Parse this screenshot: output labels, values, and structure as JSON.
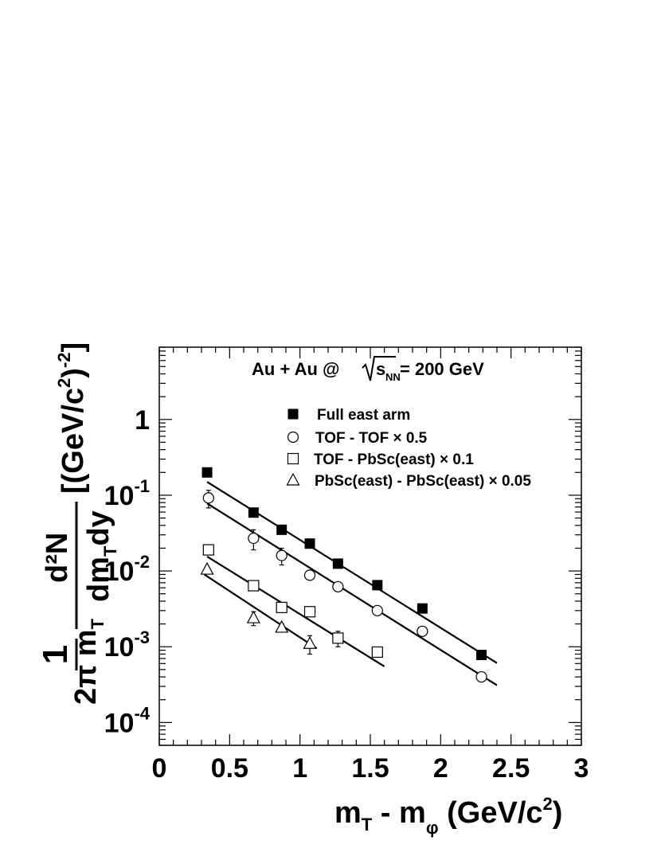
{
  "chart_data": {
    "type": "scatter",
    "title": "",
    "annotation": {
      "prefix": "Au + Au @",
      "sqrt_arg": "s",
      "sqrt_sub": "NN",
      "suffix": "= 200 GeV"
    },
    "xlabel": {
      "main": "m",
      "sub1": "T",
      "mid": " - m",
      "sub2": "φ",
      "unit": "(GeV/c",
      "sup": "2",
      "close": ")"
    },
    "ylabel": {
      "prefix": "1",
      "denominator_left": "2π m",
      "denominator_sub": "T",
      "numerator": "d²N",
      "denominator_right": "dm",
      "denominator_right_sub": "T",
      "denominator_tail": "dy",
      "unit": "[(GeV/c",
      "unit_sup_inner": "2",
      "unit_close": ")",
      "unit_sup_outer": "-2",
      "unit_bracket": "]"
    },
    "x_range": [
      0,
      3
    ],
    "y_range": [
      5e-05,
      9
    ],
    "y_scale": "log",
    "x_ticks": [
      {
        "v": 0,
        "label": "0"
      },
      {
        "v": 0.5,
        "label": "0.5"
      },
      {
        "v": 1,
        "label": "1"
      },
      {
        "v": 1.5,
        "label": "1.5"
      },
      {
        "v": 2,
        "label": "2"
      },
      {
        "v": 2.5,
        "label": "2.5"
      },
      {
        "v": 3,
        "label": "3"
      }
    ],
    "y_ticks": [
      {
        "v": 1,
        "base": "1",
        "exp": ""
      },
      {
        "v": 0.1,
        "base": "10",
        "exp": "-1"
      },
      {
        "v": 0.01,
        "base": "10",
        "exp": "-2"
      },
      {
        "v": 0.001,
        "base": "10",
        "exp": "-3"
      },
      {
        "v": 0.0001,
        "base": "10",
        "exp": "-4"
      }
    ],
    "series": [
      {
        "name": "Full east arm",
        "marker": "filled-square",
        "x": [
          0.34,
          0.67,
          0.87,
          1.07,
          1.27,
          1.55,
          1.87,
          2.29
        ],
        "y": [
          0.2,
          0.059,
          0.035,
          0.023,
          0.0125,
          0.0065,
          0.0032,
          0.00078
        ],
        "err": [
          0,
          0.004,
          0.003,
          0.002,
          0.001,
          0.0006,
          0.0003,
          6e-05
        ],
        "fit": {
          "x": [
            0.34,
            2.4
          ],
          "y": [
            0.15,
            0.00061
          ]
        }
      },
      {
        "name": "TOF - TOF × 0.5",
        "marker": "open-circle",
        "x": [
          0.35,
          0.67,
          0.87,
          1.07,
          1.27,
          1.55,
          1.87,
          2.29
        ],
        "y": [
          0.092,
          0.027,
          0.016,
          0.0088,
          0.0062,
          0.003,
          0.0016,
          0.0004
        ],
        "err": [
          0.024,
          0.008,
          0.004,
          0.001,
          0.0008,
          0.0003,
          0.0002,
          3e-05
        ],
        "fit": {
          "x": [
            0.34,
            2.4
          ],
          "y": [
            0.078,
            0.00031
          ]
        }
      },
      {
        "name": "TOF - PbSc(east) × 0.1",
        "marker": "open-square",
        "x": [
          0.35,
          0.67,
          0.87,
          1.07,
          1.27,
          1.55
        ],
        "y": [
          0.019,
          0.0064,
          0.0033,
          0.0029,
          0.0013,
          0.00085
        ],
        "err": [
          0,
          0.0006,
          0.0003,
          0.0003,
          0.0003,
          0.0001
        ],
        "fit": {
          "x": [
            0.34,
            1.6
          ],
          "y": [
            0.0155,
            0.00055
          ]
        }
      },
      {
        "name": "PbSc(east) - PbSc(east) × 0.05",
        "marker": "open-triangle",
        "x": [
          0.34,
          0.67,
          0.87,
          1.07
        ],
        "y": [
          0.0105,
          0.0024,
          0.0018,
          0.0011
        ],
        "err": [
          0.001,
          0.0005,
          0.0002,
          0.0003
        ],
        "fit": {
          "x": [
            0.32,
            1.12
          ],
          "y": [
            0.009,
            0.00095
          ]
        }
      }
    ],
    "legend_placement": "top-center",
    "grid": false
  }
}
